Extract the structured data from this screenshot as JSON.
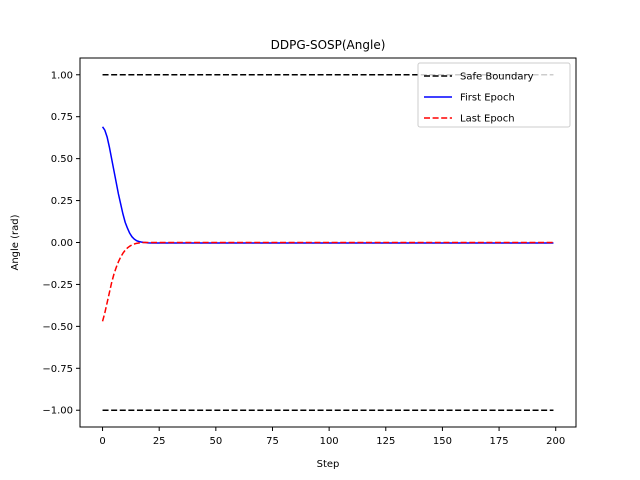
{
  "chart_data": {
    "type": "line",
    "title": "DDPG-SOSP(Angle)",
    "xlabel": "Step",
    "ylabel": "Angle (rad)",
    "xlim": [
      -9.95,
      208.95
    ],
    "ylim": [
      -1.1,
      1.1
    ],
    "xticks": [
      0,
      25,
      50,
      75,
      100,
      125,
      150,
      175,
      200
    ],
    "yticks": [
      -1.0,
      -0.75,
      -0.5,
      -0.25,
      0.0,
      0.25,
      0.5,
      0.75,
      1.0
    ],
    "ytick_labels": [
      "−1.00",
      "−0.75",
      "−0.50",
      "−0.25",
      "0.00",
      "0.25",
      "0.50",
      "0.75",
      "1.00"
    ],
    "legend_position": "top-right",
    "grid": false,
    "series": [
      {
        "name": "Safe Boundary",
        "color": "#000000",
        "dash": "dashed",
        "segments": [
          {
            "x": [
              0,
              199
            ],
            "y": [
              1.0,
              1.0
            ]
          },
          {
            "x": [
              0,
              199
            ],
            "y": [
              -1.0,
              -1.0
            ]
          }
        ]
      },
      {
        "name": "First Epoch",
        "color": "#0000ff",
        "dash": "solid",
        "x": [
          0,
          1,
          2,
          3,
          4,
          5,
          6,
          7,
          8,
          9,
          10,
          11,
          12,
          13,
          14,
          15,
          16,
          17,
          18,
          19,
          20,
          22,
          25,
          30,
          50,
          100,
          150,
          199
        ],
        "y": [
          0.69,
          0.67,
          0.63,
          0.57,
          0.5,
          0.43,
          0.36,
          0.29,
          0.23,
          0.17,
          0.12,
          0.085,
          0.055,
          0.034,
          0.02,
          0.011,
          0.006,
          0.003,
          0.001,
          0.0,
          -0.002,
          -0.003,
          -0.003,
          -0.003,
          -0.003,
          -0.003,
          -0.003,
          -0.003
        ]
      },
      {
        "name": "Last Epoch",
        "color": "#ff0000",
        "dash": "dashed",
        "x": [
          0,
          1,
          2,
          3,
          4,
          5,
          6,
          7,
          8,
          9,
          10,
          11,
          12,
          13,
          14,
          15,
          16,
          17,
          18,
          19,
          20,
          22,
          25,
          30,
          50,
          100,
          150,
          199
        ],
        "y": [
          -0.47,
          -0.42,
          -0.36,
          -0.3,
          -0.24,
          -0.19,
          -0.15,
          -0.115,
          -0.087,
          -0.064,
          -0.046,
          -0.032,
          -0.022,
          -0.014,
          -0.009,
          -0.005,
          -0.003,
          -0.001,
          0.0,
          0.0,
          0.0,
          0.0,
          0.0,
          0.0,
          0.0,
          0.0,
          0.0,
          0.0
        ]
      }
    ]
  }
}
